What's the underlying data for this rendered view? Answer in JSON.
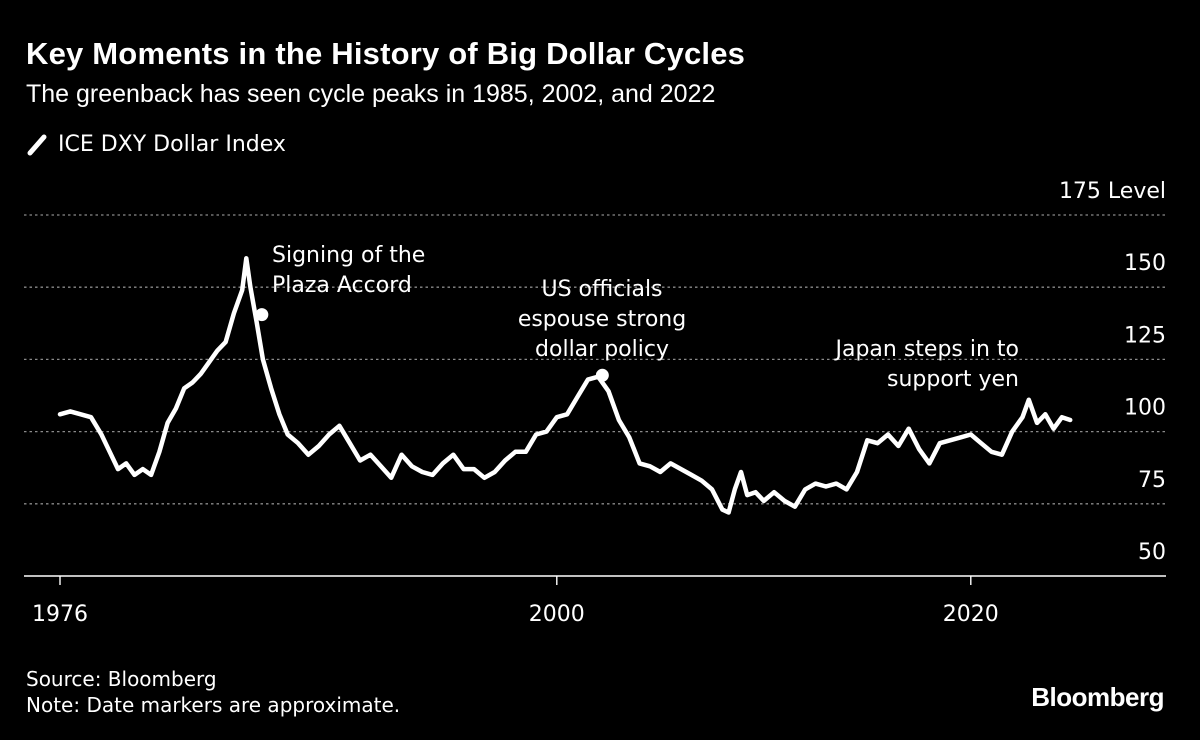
{
  "header": {
    "title": "Key Moments in the History of Big Dollar Cycles",
    "subtitle": "The greenback has seen cycle peaks in 1985, 2002, and 2022"
  },
  "footer": {
    "source": "Source: Bloomberg",
    "note": "Note: Date markers are approximate.",
    "brand": "Bloomberg"
  },
  "colors": {
    "background": "#000000",
    "line": "#ffffff",
    "grid": "#8a8a8a"
  },
  "chart_data": {
    "type": "line",
    "title": "Key Moments in the History of Big Dollar Cycles",
    "subtitle": "The greenback has seen cycle peaks in 1985, 2002, and 2022",
    "y_unit": "Level",
    "xlim": [
      1976,
      2026
    ],
    "ylim": [
      50,
      175
    ],
    "x_ticks": [
      1976,
      2000,
      2020
    ],
    "y_ticks": [
      50,
      75,
      100,
      125,
      150,
      175
    ],
    "grid": true,
    "legend_position": "top-left",
    "series": [
      {
        "name": "ICE DXY Dollar Index",
        "x": [
          1976.0,
          1976.5,
          1977.0,
          1977.5,
          1978.0,
          1978.4,
          1978.8,
          1979.2,
          1979.6,
          1980.0,
          1980.4,
          1980.8,
          1981.2,
          1981.6,
          1982.0,
          1982.4,
          1982.8,
          1983.2,
          1983.6,
          1984.0,
          1984.4,
          1984.8,
          1985.0,
          1985.2,
          1985.5,
          1985.8,
          1986.2,
          1986.6,
          1987.0,
          1987.5,
          1988.0,
          1988.5,
          1989.0,
          1989.5,
          1990.0,
          1990.5,
          1991.0,
          1991.5,
          1992.0,
          1992.5,
          1993.0,
          1993.5,
          1994.0,
          1994.5,
          1995.0,
          1995.5,
          1996.0,
          1996.5,
          1997.0,
          1997.5,
          1998.0,
          1998.5,
          1999.0,
          1999.5,
          2000.0,
          2000.5,
          2001.0,
          2001.5,
          2002.0,
          2002.5,
          2003.0,
          2003.5,
          2004.0,
          2004.5,
          2005.0,
          2005.5,
          2006.0,
          2006.5,
          2007.0,
          2007.5,
          2008.0,
          2008.3,
          2008.6,
          2008.9,
          2009.2,
          2009.6,
          2010.0,
          2010.5,
          2011.0,
          2011.5,
          2012.0,
          2012.5,
          2013.0,
          2013.5,
          2014.0,
          2014.5,
          2015.0,
          2015.5,
          2016.0,
          2016.5,
          2017.0,
          2017.5,
          2018.0,
          2018.5,
          2019.0,
          2019.5,
          2020.0,
          2020.5,
          2021.0,
          2021.5,
          2022.0,
          2022.5,
          2022.8,
          2023.2,
          2023.6,
          2024.0,
          2024.4,
          2024.8
        ],
        "values": [
          106,
          107,
          106,
          105,
          99,
          93,
          87,
          89,
          85,
          87,
          85,
          93,
          103,
          108,
          115,
          117,
          120,
          124,
          128,
          131,
          141,
          149,
          160,
          150,
          138,
          125,
          115,
          106,
          99,
          96,
          92,
          95,
          99,
          102,
          96,
          90,
          92,
          88,
          84,
          92,
          88,
          86,
          85,
          89,
          92,
          87,
          87,
          84,
          86,
          90,
          93,
          93,
          99,
          100,
          105,
          106,
          112,
          118,
          119,
          114,
          104,
          98,
          89,
          88,
          86,
          89,
          87,
          85,
          83,
          80,
          73,
          72,
          80,
          86,
          78,
          79,
          76,
          79,
          76,
          74,
          80,
          82,
          81,
          82,
          80,
          86,
          97,
          96,
          99,
          95,
          101,
          94,
          89,
          96,
          97,
          98,
          99,
          96,
          93,
          92,
          100,
          105,
          111,
          103,
          106,
          101,
          105,
          104
        ]
      }
    ],
    "annotations": [
      {
        "text_lines": [
          "Signing of the",
          "Plaza Accord"
        ],
        "x": 1985.75,
        "y": 140.5,
        "marker": true
      },
      {
        "text_lines": [
          "US officials",
          "espouse strong",
          "dollar policy"
        ],
        "x": 2002.2,
        "y": 119.5,
        "marker": true
      },
      {
        "text_lines": [
          "Japan steps in to",
          "support yen"
        ],
        "x": 2022.8,
        "y": null,
        "marker": false
      }
    ]
  }
}
